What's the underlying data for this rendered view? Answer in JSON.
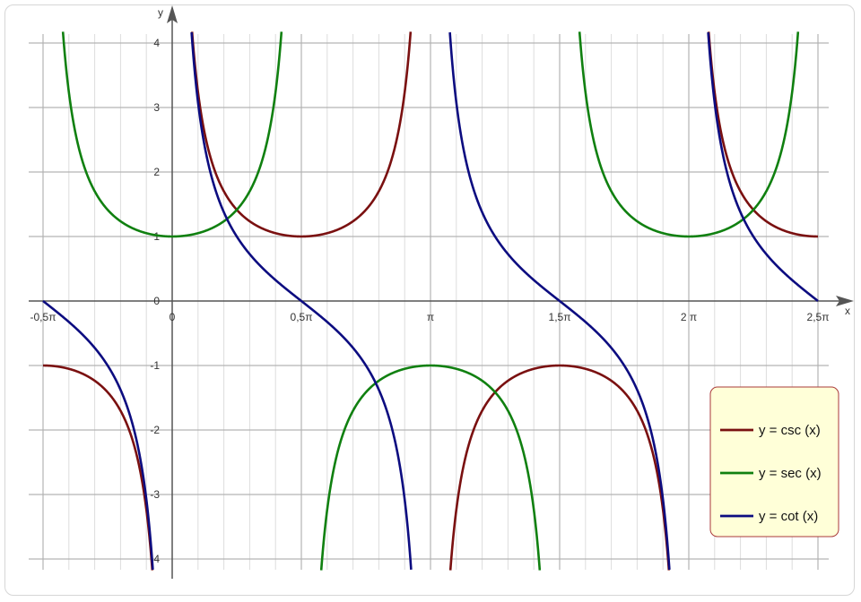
{
  "chart_data": {
    "type": "line",
    "title": "",
    "xlabel": "x",
    "ylabel": "y",
    "xlim": [
      -0.5,
      2.5
    ],
    "ylim": [
      -4.2,
      4.2
    ],
    "x_unit": "π",
    "x_ticks": [
      {
        "value": -0.5,
        "label": "-0,5π"
      },
      {
        "value": 0,
        "label": "0"
      },
      {
        "value": 0.5,
        "label": "0,5π"
      },
      {
        "value": 1,
        "label": "π"
      },
      {
        "value": 1.5,
        "label": "1,5π"
      },
      {
        "value": 2,
        "label": "2 π"
      },
      {
        "value": 2.5,
        "label": "2,5π"
      }
    ],
    "y_ticks": [
      {
        "value": 4,
        "label": "4"
      },
      {
        "value": 3,
        "label": "3"
      },
      {
        "value": 2,
        "label": "2"
      },
      {
        "value": 1,
        "label": "1"
      },
      {
        "value": 0,
        "label": "0"
      },
      {
        "value": -1,
        "label": "-1"
      },
      {
        "value": -2,
        "label": "-2"
      },
      {
        "value": -3,
        "label": "-3"
      },
      {
        "value": -4,
        "label": "-4"
      }
    ],
    "grid": true,
    "legend_position": "bottom-right",
    "series": [
      {
        "name": "y = csc (x)",
        "function": "csc",
        "color": "#7a1010"
      },
      {
        "name": "y = sec (x)",
        "function": "sec",
        "color": "#108010"
      },
      {
        "name": "y = cot (x)",
        "function": "cot",
        "color": "#0c0c80"
      }
    ]
  },
  "colors": {
    "grid_major": "#b3b3b3",
    "grid_minor": "#dddddd",
    "axis": "#555555",
    "legend_bg": "#ffffd8",
    "legend_border": "#aa3a3a"
  }
}
